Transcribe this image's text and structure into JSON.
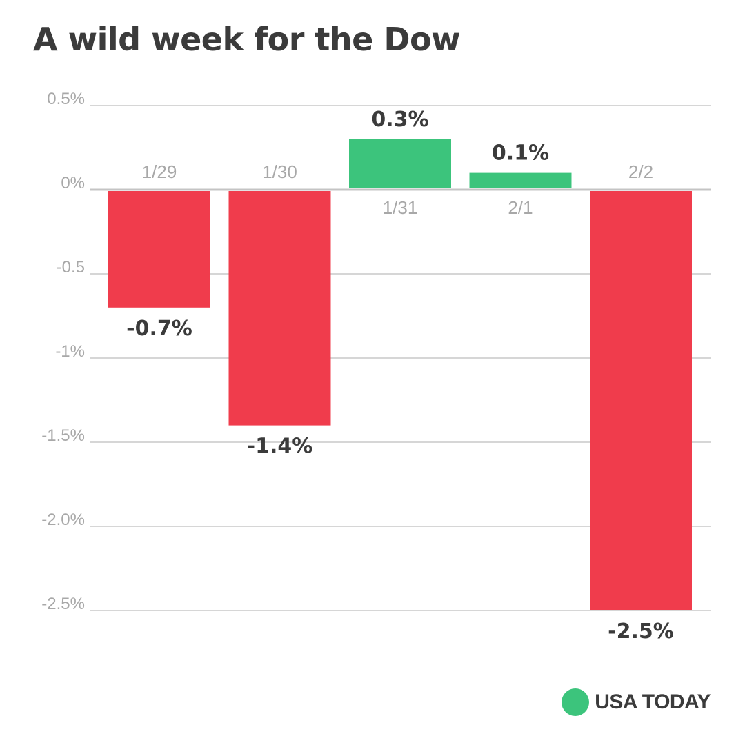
{
  "chart_data": {
    "type": "bar",
    "title": "A wild week for the Dow",
    "categories": [
      "1/29",
      "1/30",
      "1/31",
      "2/1",
      "2/2"
    ],
    "values": [
      -0.7,
      -1.4,
      0.3,
      0.1,
      -2.5
    ],
    "value_labels": [
      "-0.7%",
      "-1.4%",
      "0.3%",
      "0.1%",
      "-2.5%"
    ],
    "xlabel": "",
    "ylabel": "",
    "ylim": [
      -2.5,
      0.5
    ],
    "y_ticks": [
      0.5,
      0,
      -0.5,
      -1,
      -1.5,
      -2.0,
      -2.5
    ],
    "y_tick_labels": [
      "0.5%",
      "0%",
      "-0.5",
      "-1%",
      "-1.5%",
      "-2.0%",
      "-2.5%"
    ],
    "grid": true,
    "colors": {
      "positive": "#3cc47c",
      "negative": "#f03c4c",
      "grid": "#d6d6d6",
      "zero_line": "#c4c4c4"
    }
  },
  "branding": {
    "text": "USA TODAY",
    "dot_color": "#3cc47c"
  }
}
